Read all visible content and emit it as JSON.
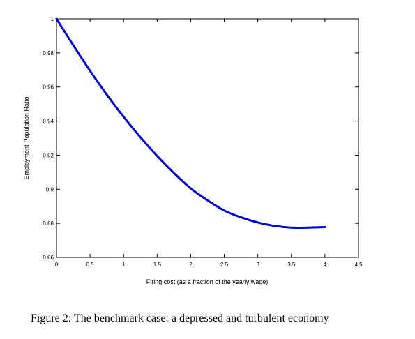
{
  "caption": "Figure 2: The benchmark case: a depressed and turbulent economy",
  "chart_data": {
    "type": "line",
    "title": "",
    "xlabel": "Firing cost (as a fraction of the yearly wage)",
    "ylabel": "Employment-Population Ratio",
    "xlim": [
      0,
      4.5
    ],
    "ylim": [
      0.86,
      1
    ],
    "xticks": [
      0,
      0.5,
      1,
      1.5,
      2,
      2.5,
      3,
      3.5,
      4,
      4.5
    ],
    "xtick_labels": [
      "0",
      "0.5",
      "1",
      "1.5",
      "2",
      "2.5",
      "3",
      "3.5",
      "4",
      "4.5"
    ],
    "yticks": [
      0.86,
      0.88,
      0.9,
      0.92,
      0.94,
      0.96,
      0.98,
      1
    ],
    "ytick_labels": [
      "0.86",
      "0.88",
      "0.9",
      "0.92",
      "0.94",
      "0.96",
      "0.98",
      "1"
    ],
    "grid": false,
    "line_color": "#0000dd",
    "series": [
      {
        "x": [
          0,
          0.25,
          0.5,
          0.75,
          1,
          1.25,
          1.5,
          1.75,
          2,
          2.25,
          2.5,
          2.75,
          3,
          3.25,
          3.5,
          3.75,
          4
        ],
        "y": [
          1.0,
          0.9845,
          0.9695,
          0.9555,
          0.9425,
          0.9305,
          0.9195,
          0.9095,
          0.9005,
          0.8935,
          0.8875,
          0.8835,
          0.8805,
          0.8785,
          0.8775,
          0.8775,
          0.8778
        ]
      }
    ]
  }
}
